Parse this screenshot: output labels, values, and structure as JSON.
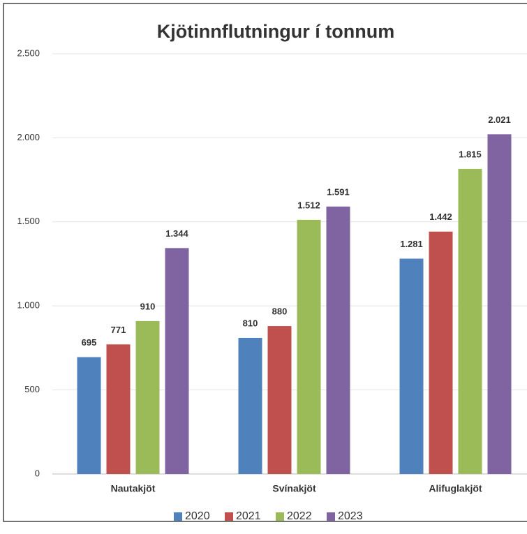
{
  "chart_data": {
    "type": "bar",
    "title": "Kjötinnflutningur í tonnum",
    "categories": [
      "Nautakjöt",
      "Svínakjöt",
      "Alifuglakjöt"
    ],
    "series": [
      {
        "name": "2020",
        "color": "#4f81bd",
        "values": [
          695,
          810,
          1281
        ],
        "value_labels": [
          "695",
          "810",
          "1.281"
        ]
      },
      {
        "name": "2021",
        "color": "#c0504d",
        "values": [
          771,
          880,
          1442
        ],
        "value_labels": [
          "771",
          "880",
          "1.442"
        ]
      },
      {
        "name": "2022",
        "color": "#9bbb59",
        "values": [
          910,
          1512,
          1815
        ],
        "value_labels": [
          "910",
          "1.512",
          "1.815"
        ]
      },
      {
        "name": "2023",
        "color": "#8064a2",
        "values": [
          1344,
          1591,
          2021
        ],
        "value_labels": [
          "1.344",
          "1.591",
          "2.021"
        ]
      }
    ],
    "ylim": [
      0,
      2500
    ],
    "yticks": [
      0,
      500,
      {
        "value": 1000,
        "label": "1.000"
      },
      {
        "value": 1500,
        "label": "1.500"
      },
      {
        "value": 2000,
        "label": "2.000"
      },
      {
        "value": 2500,
        "label": "2.500"
      }
    ],
    "grid": true,
    "legend": "bottom"
  }
}
